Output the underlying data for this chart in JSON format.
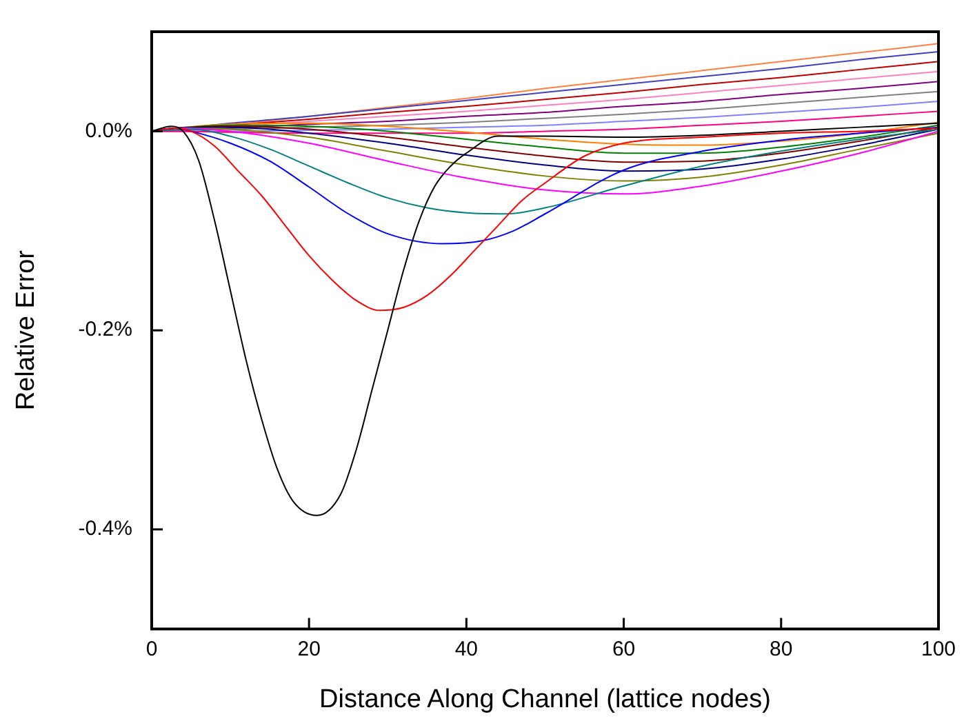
{
  "chart_data": {
    "type": "line",
    "xlabel": "Distance Along Channel (lattice nodes)",
    "ylabel": "Relative Error",
    "xlim": [
      0,
      100
    ],
    "xticks": [
      0,
      20,
      40,
      60,
      80,
      100
    ],
    "ylim": [
      -0.5,
      0.1
    ],
    "yticks": [
      {
        "value": 0,
        "label": "0.0%"
      },
      {
        "value": -0.2,
        "label": "-0.2%"
      },
      {
        "value": -0.4,
        "label": "-0.4%"
      }
    ],
    "marker": "none",
    "line_style": "solid",
    "legend": false,
    "x": [
      0,
      3,
      10,
      20,
      30,
      40,
      50,
      60,
      70,
      80,
      90,
      100
    ],
    "series": [
      {
        "color": "#000000",
        "x": [
          0,
          2.5,
          4,
          6,
          8,
          10,
          12,
          14,
          16,
          18,
          21,
          24,
          26,
          28,
          30,
          32,
          34,
          36,
          38,
          40,
          44,
          50,
          60,
          70,
          80,
          90,
          100
        ],
        "values": [
          0,
          0.005,
          0,
          -0.03,
          -0.09,
          -0.16,
          -0.23,
          -0.29,
          -0.34,
          -0.372,
          -0.386,
          -0.365,
          -0.32,
          -0.26,
          -0.2,
          -0.14,
          -0.09,
          -0.055,
          -0.035,
          -0.022,
          -0.005,
          -0.005,
          -0.006,
          -0.004,
          0,
          0.004,
          0.008
        ]
      },
      {
        "color": "#ff0000",
        "x": [
          0,
          3,
          5,
          8,
          11,
          14,
          17,
          20,
          23,
          26,
          29,
          32,
          35,
          38,
          41,
          44,
          47,
          50,
          55,
          60,
          70,
          80,
          90,
          100
        ],
        "values": [
          0,
          0.003,
          0,
          -0.015,
          -0.04,
          -0.065,
          -0.095,
          -0.125,
          -0.15,
          -0.17,
          -0.18,
          -0.177,
          -0.165,
          -0.145,
          -0.12,
          -0.095,
          -0.07,
          -0.052,
          -0.025,
          -0.012,
          -0.006,
          -0.002,
          0,
          0.003
        ]
      },
      {
        "color": "#0000ff",
        "x": [
          0,
          3,
          5,
          10,
          15,
          20,
          25,
          30,
          37,
          42,
          46,
          50,
          60,
          70,
          80,
          90,
          100
        ],
        "values": [
          0,
          0.003,
          0,
          -0.012,
          -0.03,
          -0.056,
          -0.083,
          -0.103,
          -0.113,
          -0.11,
          -0.1,
          -0.083,
          -0.039,
          -0.02,
          -0.009,
          -0.002,
          0.004
        ]
      },
      {
        "color": "#008080",
        "x": [
          0,
          5,
          10,
          15,
          20,
          25,
          30,
          35,
          40,
          45,
          50,
          60,
          70,
          80,
          90,
          100
        ],
        "values": [
          0,
          0.002,
          -0.005,
          -0.018,
          -0.035,
          -0.052,
          -0.067,
          -0.077,
          -0.082,
          -0.083,
          -0.077,
          -0.055,
          -0.035,
          -0.02,
          -0.008,
          0.002
        ]
      },
      {
        "color": "#ff00ff",
        "values": [
          0,
          0.003,
          0,
          -0.012,
          -0.03,
          -0.047,
          -0.059,
          -0.063,
          -0.055,
          -0.04,
          -0.022,
          0
        ]
      },
      {
        "color": "#808000",
        "values": [
          0,
          0.003,
          0.002,
          -0.006,
          -0.02,
          -0.034,
          -0.045,
          -0.05,
          -0.046,
          -0.034,
          -0.018,
          -0.002
        ]
      },
      {
        "color": "#000080",
        "values": [
          0,
          0.003,
          0.004,
          -0.002,
          -0.012,
          -0.024,
          -0.034,
          -0.04,
          -0.038,
          -0.028,
          -0.014,
          0.002
        ]
      },
      {
        "color": "#800000",
        "values": [
          0,
          0.003,
          0.005,
          0.002,
          -0.006,
          -0.016,
          -0.025,
          -0.031,
          -0.03,
          -0.022,
          -0.01,
          0.004
        ]
      },
      {
        "color": "#008000",
        "values": [
          0,
          0.003,
          0.006,
          0.005,
          0,
          -0.008,
          -0.016,
          -0.022,
          -0.022,
          -0.016,
          -0.006,
          0.006
        ]
      },
      {
        "color": "#ff8000",
        "values": [
          0,
          0.003,
          0.007,
          0.008,
          0.005,
          -0.001,
          -0.008,
          -0.013,
          -0.014,
          -0.01,
          -0.002,
          0.009
        ]
      },
      {
        "color": "#ff0080",
        "values": [
          0,
          0,
          -0.001,
          -0.002,
          -0.002,
          -0.002,
          0,
          0.002,
          0.006,
          0.01,
          0.015,
          0.02
        ]
      },
      {
        "color": "#8080ff",
        "values": [
          0,
          0,
          0,
          0.001,
          0.002,
          0.004,
          0.006,
          0.01,
          0.014,
          0.019,
          0.024,
          0.03
        ]
      },
      {
        "color": "#808080",
        "values": [
          0,
          0.001,
          0.002,
          0.004,
          0.006,
          0.009,
          0.013,
          0.017,
          0.022,
          0.028,
          0.034,
          0.04
        ]
      },
      {
        "color": "#800080",
        "values": [
          0,
          0.001,
          0.003,
          0.007,
          0.01,
          0.015,
          0.019,
          0.025,
          0.03,
          0.037,
          0.043,
          0.05
        ]
      },
      {
        "color": "#ff80c0",
        "values": [
          0,
          0.002,
          0.005,
          0.01,
          0.015,
          0.02,
          0.026,
          0.032,
          0.039,
          0.046,
          0.053,
          0.06
        ]
      },
      {
        "color": "#c00000",
        "values": [
          0,
          0.002,
          0.006,
          0.012,
          0.019,
          0.025,
          0.032,
          0.039,
          0.047,
          0.054,
          0.062,
          0.07
        ]
      },
      {
        "color": "#4040c0",
        "values": [
          0,
          0.002,
          0.008,
          0.015,
          0.023,
          0.031,
          0.039,
          0.047,
          0.055,
          0.063,
          0.072,
          0.08
        ]
      },
      {
        "color": "#ff8040",
        "values": [
          0,
          0,
          0.006,
          0.015,
          0.024,
          0.033,
          0.043,
          0.052,
          0.061,
          0.07,
          0.079,
          0.088
        ]
      }
    ]
  }
}
